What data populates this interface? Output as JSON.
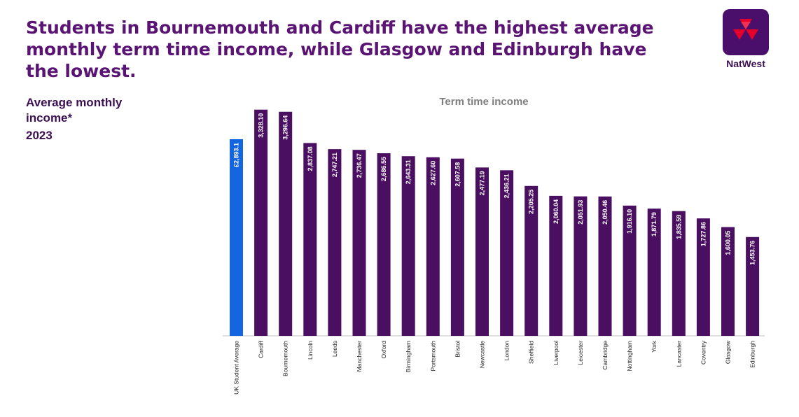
{
  "headline": "Students in Bournemouth and Cardiff have the highest average monthly term time income, while Glasgow and Edinburgh have the lowest.",
  "side_label": "Average monthly income*",
  "side_year": "2023",
  "brand": {
    "name": "NatWest",
    "logo_icon": "natwest-cubes-icon",
    "logo_bg": "#4a0f6a",
    "logo_fg": "#e4002b"
  },
  "colors": {
    "headline": "#5a1473",
    "bar_primary": "#4b0f62",
    "bar_highlight": "#1565e0"
  },
  "chart_data": {
    "type": "bar",
    "title": "Term time income",
    "xlabel": "",
    "ylabel": "",
    "ylim": [
      0,
      3500
    ],
    "grid": false,
    "legend": "none",
    "categories": [
      "UK Student Average",
      "Cardiff",
      "Bournemouth",
      "Lincoln",
      "Leeds",
      "Manchester",
      "Oxford",
      "Birmingham",
      "Portsmouth",
      "Bristol",
      "Newcastle",
      "London",
      "Sheffield",
      "Liverpool",
      "Leicester",
      "Cambridge",
      "Nottingham",
      "York",
      "Lancaster",
      "Coventry",
      "Glasgow",
      "Edinburgh"
    ],
    "values": [
      2893.1,
      3328.1,
      3296.64,
      2837.08,
      2747.21,
      2736.47,
      2686.55,
      2643.31,
      2627.6,
      2607.58,
      2477.19,
      2436.21,
      2205.25,
      2060.04,
      2051.93,
      2050.46,
      1916.1,
      1871.79,
      1835.59,
      1727.86,
      1600.05,
      1453.76
    ],
    "value_labels": [
      "£2,893.1",
      "3,328.10",
      "3,296.64",
      "2,837.08",
      "2,747.21",
      "2,736.47",
      "2,686.55",
      "2,643.31",
      "2,627.60",
      "2,607.58",
      "2,477.19",
      "2,436.21",
      "2,205.25",
      "2,060.04",
      "2,051.93",
      "2,050.46",
      "1,916.10",
      "1,871.79",
      "1,835.59",
      "1,727.86",
      "1,600.05",
      "1,453.76"
    ],
    "highlight_index": 0
  }
}
